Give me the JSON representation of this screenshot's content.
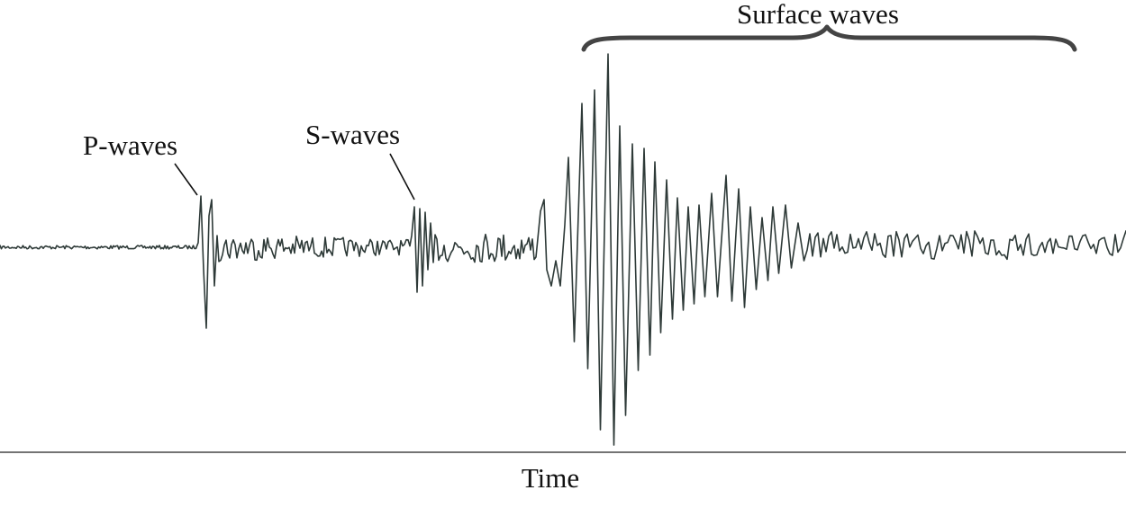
{
  "labels": {
    "p_waves": "P-waves",
    "s_waves": "S-waves",
    "surface_waves": "Surface waves",
    "time_axis": "Time"
  },
  "colors": {
    "trace": "#2e3a38",
    "brace": "#444444",
    "text": "#111111",
    "background": "#ffffff"
  }
}
